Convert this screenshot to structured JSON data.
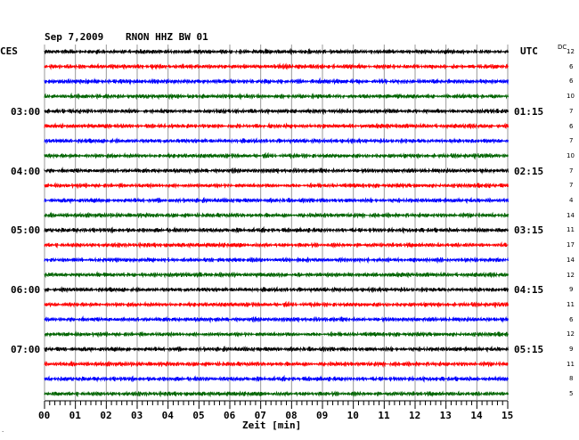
{
  "header": {
    "date": "Sep 7,2009",
    "station": "RNON HHZ BW 01",
    "left_zone": "CES",
    "right_zone": "UTC",
    "dc_label": "DC"
  },
  "left_time_labels": [
    "03:00",
    "04:00",
    "05:00",
    "06:00",
    "07:00"
  ],
  "right_time_labels": [
    "01:15",
    "02:15",
    "03:15",
    "04:15",
    "05:15"
  ],
  "dc_offsets": [
    "12",
    "6",
    "6",
    "10",
    "7",
    "6",
    "7",
    "10",
    "7",
    "7",
    "4",
    "14",
    "11",
    "17",
    "14",
    "12",
    "9",
    "11",
    "6",
    "12",
    "9",
    "11",
    "8",
    "5"
  ],
  "x_axis": {
    "tick_labels": [
      "00",
      "01",
      "02",
      "03",
      "04",
      "05",
      "06",
      "07",
      "08",
      "09",
      "10",
      "11",
      "12",
      "13",
      "14",
      "15"
    ],
    "label": "Zeit [min]"
  },
  "trace_colors": [
    "#000000",
    "#ff0000",
    "#0000ff",
    "#006400"
  ],
  "corner_mark": "."
}
